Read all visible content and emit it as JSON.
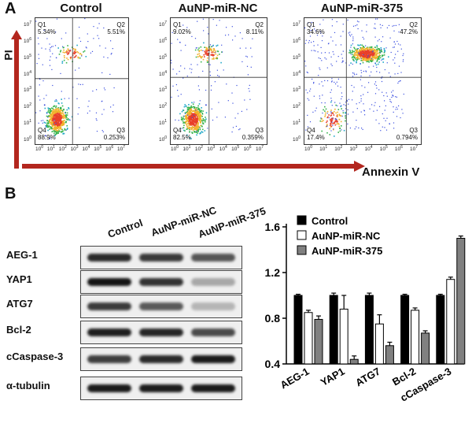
{
  "panel_a": {
    "letter": "A",
    "y_axis_label": "PI",
    "x_axis_label": "Annexin V",
    "tick_labels": [
      "10",
      "0",
      "10",
      "1",
      "10",
      "2",
      "10",
      "3",
      "10",
      "4",
      "10",
      "5",
      "10",
      "6",
      "10",
      "7"
    ],
    "plots": [
      {
        "title": "Control",
        "q1": "Q1",
        "q1_val": "5.34%",
        "q2": "Q2",
        "q2_val": "5.51%",
        "q3": "Q3",
        "q3_val": "0.253%",
        "q4": "Q4",
        "q4_val": "88.9%"
      },
      {
        "title": "AuNP-miR-NC",
        "q1": "Q1",
        "q1_val": "9.02%",
        "q2": "Q2",
        "q2_val": "8.11%",
        "q3": "Q3",
        "q3_val": "0.359%",
        "q4": "Q4",
        "q4_val": "82.5%"
      },
      {
        "title": "AuNP-miR-375",
        "q1": "Q1",
        "q1_val": "34.6%",
        "q2": "Q2",
        "q2_val": "47.2%",
        "q3": "Q3",
        "q3_val": "0.794%",
        "q4": "Q4",
        "q4_val": "17.4%"
      }
    ]
  },
  "panel_b": {
    "letter": "B",
    "columns": [
      "Control",
      "AuNP-miR-NC",
      "AuNP-miR-375"
    ],
    "rows": [
      "AEG-1",
      "YAP1",
      "ATG7",
      "Bcl-2",
      "cCaspase-3",
      "α-tubulin"
    ]
  },
  "chart_data": {
    "type": "bar",
    "title": "",
    "xlabel": "",
    "ylabel": "",
    "ylim": [
      0.4,
      1.6
    ],
    "yticks": [
      "1.6",
      "1.2",
      "0.8",
      "0.4"
    ],
    "categories": [
      "AEG-1",
      "YAP1",
      "ATG7",
      "Bcl-2",
      "cCaspase-3"
    ],
    "series": [
      {
        "name": "Control",
        "color": "#000000",
        "values": [
          1.0,
          1.0,
          1.0,
          1.0,
          1.0
        ],
        "errors": [
          0.01,
          0.02,
          0.02,
          0.01,
          0.01
        ]
      },
      {
        "name": "AuNP-miR-NC",
        "color": "#ffffff",
        "values": [
          0.85,
          0.88,
          0.75,
          0.87,
          1.14
        ],
        "errors": [
          0.02,
          0.12,
          0.08,
          0.02,
          0.02
        ]
      },
      {
        "name": "AuNP-miR-375",
        "color": "#808080",
        "values": [
          0.79,
          0.44,
          0.56,
          0.67,
          1.5
        ],
        "errors": [
          0.03,
          0.03,
          0.03,
          0.02,
          0.02
        ]
      }
    ],
    "legend_position": "top-left"
  }
}
